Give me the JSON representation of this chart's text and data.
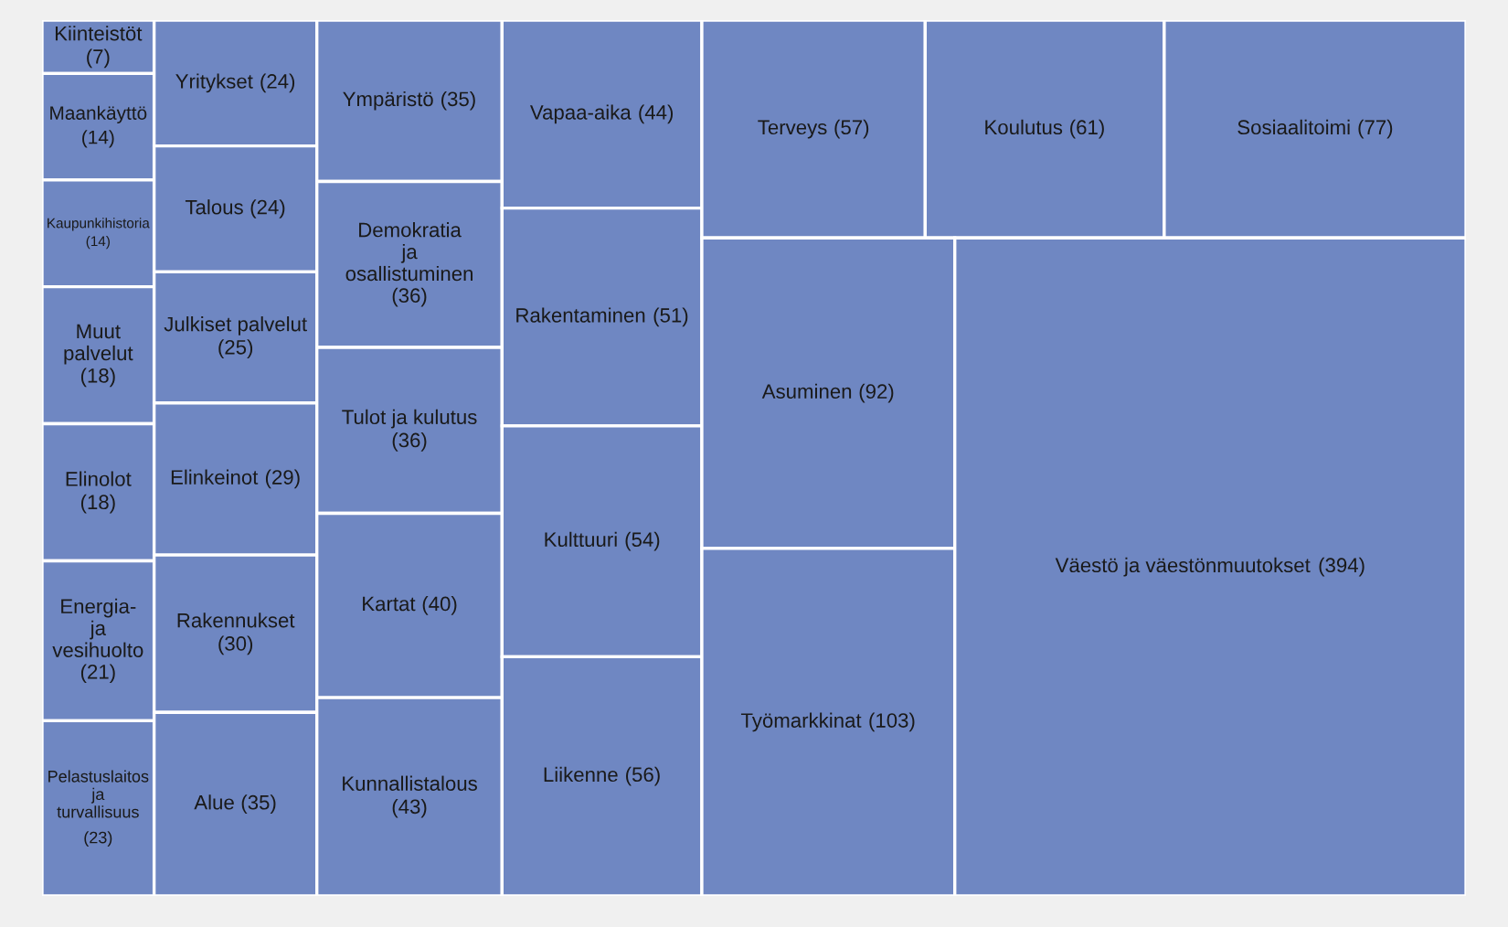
{
  "chart_data": {
    "type": "other",
    "categories": [
      "Kiinteistöt",
      "Maankäyttö",
      "Kaupunkihistoria",
      "Muut palvelut",
      "Elinolot",
      "Energia- ja vesihuolto",
      "Pelastuslaitos ja turvallisuus",
      "Yritykset",
      "Talous",
      "Julkiset palvelut",
      "Elinkeinot",
      "Rakennukset",
      "Alue",
      "Ympäristö",
      "Demokratia ja osallistuminen",
      "Tulot ja kulutus",
      "Kartat",
      "Kunnallistalous",
      "Vapaa-aika",
      "Rakentaminen",
      "Kulttuuri",
      "Liikenne",
      "Terveys",
      "Koulutus",
      "Sosiaalitoimi",
      "Asuminen",
      "Työmarkkinat",
      "Väestö ja väestönmuutokset"
    ],
    "values": [
      7,
      14,
      14,
      18,
      18,
      21,
      23,
      24,
      24,
      25,
      29,
      30,
      35,
      35,
      36,
      36,
      40,
      43,
      44,
      51,
      54,
      56,
      57,
      61,
      77,
      92,
      103,
      394
    ],
    "value_labels": [
      "(7)",
      "(14)",
      "(14)",
      "(18)",
      "(18)",
      "(21)",
      "(23)",
      "(24)",
      "(24)",
      "(25)",
      "(29)",
      "(30)",
      "(35)",
      "(35)",
      "(36)",
      "(36)",
      "(40)",
      "(43)",
      "(44)",
      "(51)",
      "(54)",
      "(56)",
      "(57)",
      "(61)",
      "(77)",
      "(92)",
      "(103)",
      "(394)"
    ],
    "color": "#6f87c2"
  }
}
